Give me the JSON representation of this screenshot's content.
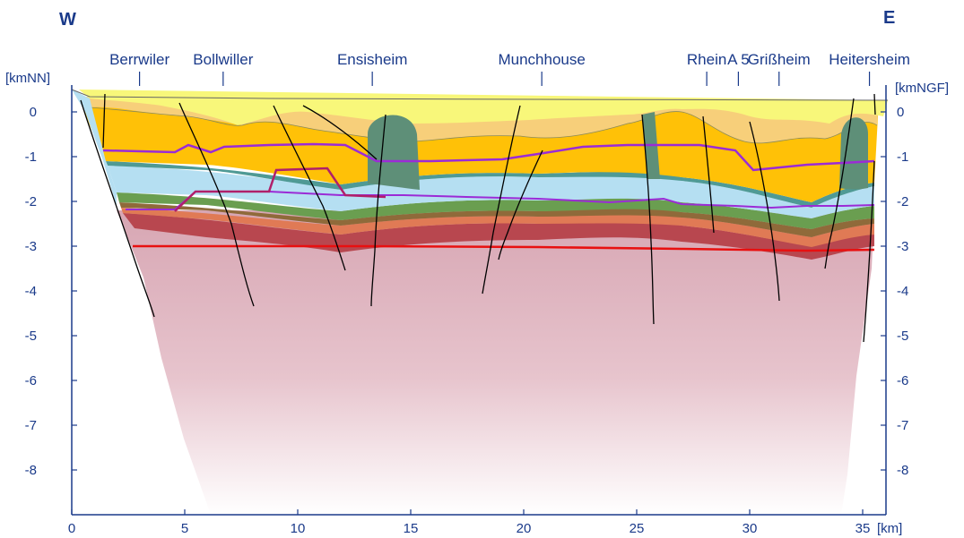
{
  "directions": {
    "west": "W",
    "east": "E"
  },
  "units": {
    "left_axis": "[kmNN]",
    "right_axis": "[kmNGF]",
    "x_axis": "[km]"
  },
  "places": [
    {
      "name": "Berrwiler",
      "km": 3.0
    },
    {
      "name": "Bollwiller",
      "km": 6.7
    },
    {
      "name": "Ensisheim",
      "km": 13.3
    },
    {
      "name": "Munchhouse",
      "km": 20.8
    },
    {
      "name": "Rhein",
      "km": 28.1
    },
    {
      "name": "A 5",
      "km": 29.5
    },
    {
      "name": "Grißheim",
      "km": 31.3
    },
    {
      "name": "Heitersheim",
      "km": 35.3
    }
  ],
  "x_ticks": [
    "0",
    "5",
    "10",
    "15",
    "20",
    "25",
    "30",
    "35"
  ],
  "y_ticks": [
    "0",
    "-1",
    "-2",
    "-3",
    "-4",
    "-5",
    "-6",
    "-7",
    "-8"
  ],
  "colors": {
    "axis": "#1a3a8a",
    "quaternary": "#f8f77a",
    "tertiary_upper": "#f7cf7a",
    "tertiary_main": "#ffc107",
    "blue_band": "#b5dff2",
    "green_band": "#6a9e50",
    "salt_dome": "#5e8f78",
    "red_band": "#b8474f",
    "basement": "#d4a4b0",
    "purple_horizon": "#9b2bd6",
    "red_horizon": "#e81010",
    "faults": "#000000"
  }
}
